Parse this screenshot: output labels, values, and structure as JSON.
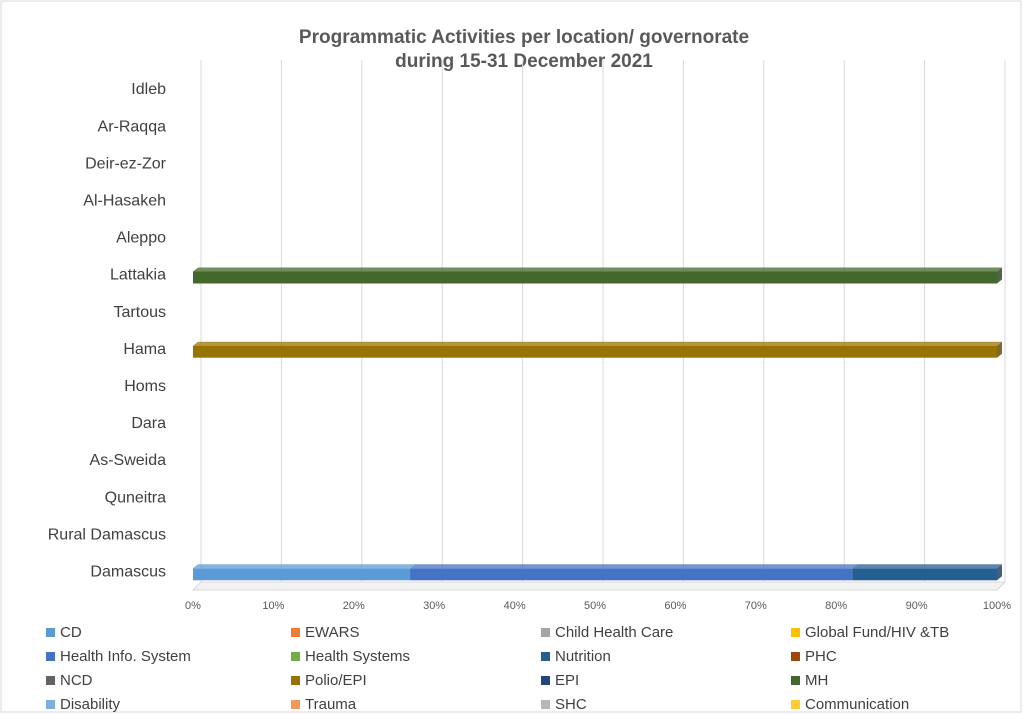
{
  "chart_data": {
    "type": "stacked_bar_horizontal",
    "title": "Programmatic Activities per location/ governorate",
    "subtitle": "during 15-31 December 2021",
    "categories": [
      "Idleb",
      "Ar-Raqqa",
      "Deir-ez-Zor",
      "Al-Hasakeh",
      "Aleppo",
      "Lattakia",
      "Tartous",
      "Hama",
      "Homs",
      "Dara",
      "As-Sweida",
      "Quneitra",
      "Rural Damascus",
      "Damascus"
    ],
    "xlim": [
      0,
      100
    ],
    "xticks": [
      {
        "value": 0,
        "label": "0%"
      },
      {
        "value": 10,
        "label": "10%"
      },
      {
        "value": 20,
        "label": "20%"
      },
      {
        "value": 30,
        "label": "30%"
      },
      {
        "value": 40,
        "label": "40%"
      },
      {
        "value": 50,
        "label": "50%"
      },
      {
        "value": 60,
        "label": "60%"
      },
      {
        "value": 70,
        "label": "70%"
      },
      {
        "value": 80,
        "label": "80%"
      },
      {
        "value": 90,
        "label": "90%"
      },
      {
        "value": 100,
        "label": "100%"
      }
    ],
    "grid": true,
    "legend": "bottom",
    "series": [
      {
        "name": "CD",
        "color": "#5b9bd5",
        "values": [
          0,
          0,
          0,
          0,
          0,
          0,
          0,
          0,
          0,
          0,
          0,
          0,
          0,
          27
        ]
      },
      {
        "name": "EWARS",
        "color": "#ed7d31",
        "values": [
          0,
          0,
          0,
          0,
          0,
          0,
          0,
          0,
          0,
          0,
          0,
          0,
          0,
          0
        ]
      },
      {
        "name": "Child Health Care",
        "color": "#a5a5a5",
        "values": [
          0,
          0,
          0,
          0,
          0,
          0,
          0,
          0,
          0,
          0,
          0,
          0,
          0,
          0
        ]
      },
      {
        "name": "Global Fund/HIV &TB",
        "color": "#ffc000",
        "values": [
          0,
          0,
          0,
          0,
          0,
          0,
          0,
          0,
          0,
          0,
          0,
          0,
          0,
          0
        ]
      },
      {
        "name": "Health Info. System",
        "color": "#4472c4",
        "values": [
          0,
          0,
          0,
          0,
          0,
          0,
          0,
          0,
          0,
          0,
          0,
          0,
          0,
          55
        ]
      },
      {
        "name": "Health Systems",
        "color": "#70ad47",
        "values": [
          0,
          0,
          0,
          0,
          0,
          0,
          0,
          0,
          0,
          0,
          0,
          0,
          0,
          0
        ]
      },
      {
        "name": "Nutrition",
        "color": "#255e91",
        "values": [
          0,
          0,
          0,
          0,
          0,
          0,
          0,
          0,
          0,
          0,
          0,
          0,
          0,
          18
        ]
      },
      {
        "name": "PHC",
        "color": "#9e480e",
        "values": [
          0,
          0,
          0,
          0,
          0,
          0,
          0,
          0,
          0,
          0,
          0,
          0,
          0,
          0
        ]
      },
      {
        "name": "NCD",
        "color": "#636363",
        "values": [
          0,
          0,
          0,
          0,
          0,
          0,
          0,
          0,
          0,
          0,
          0,
          0,
          0,
          0
        ]
      },
      {
        "name": "Polio/EPI",
        "color": "#997300",
        "values": [
          0,
          0,
          0,
          0,
          0,
          0,
          0,
          100,
          0,
          0,
          0,
          0,
          0,
          0
        ]
      },
      {
        "name": "EPI",
        "color": "#264478",
        "values": [
          0,
          0,
          0,
          0,
          0,
          0,
          0,
          0,
          0,
          0,
          0,
          0,
          0,
          0
        ]
      },
      {
        "name": "MH",
        "color": "#43682b",
        "values": [
          0,
          0,
          0,
          0,
          0,
          100,
          0,
          0,
          0,
          0,
          0,
          0,
          0,
          0
        ]
      },
      {
        "name": "Disability",
        "color": "#7cafdd",
        "values": [
          0,
          0,
          0,
          0,
          0,
          0,
          0,
          0,
          0,
          0,
          0,
          0,
          0,
          0
        ]
      },
      {
        "name": "Trauma",
        "color": "#f1975a",
        "values": [
          0,
          0,
          0,
          0,
          0,
          0,
          0,
          0,
          0,
          0,
          0,
          0,
          0,
          0
        ]
      },
      {
        "name": "SHC",
        "color": "#b7b7b7",
        "values": [
          0,
          0,
          0,
          0,
          0,
          0,
          0,
          0,
          0,
          0,
          0,
          0,
          0,
          0
        ]
      },
      {
        "name": "Communication",
        "color": "#ffcd33",
        "values": [
          0,
          0,
          0,
          0,
          0,
          0,
          0,
          0,
          0,
          0,
          0,
          0,
          0,
          0
        ]
      }
    ]
  }
}
